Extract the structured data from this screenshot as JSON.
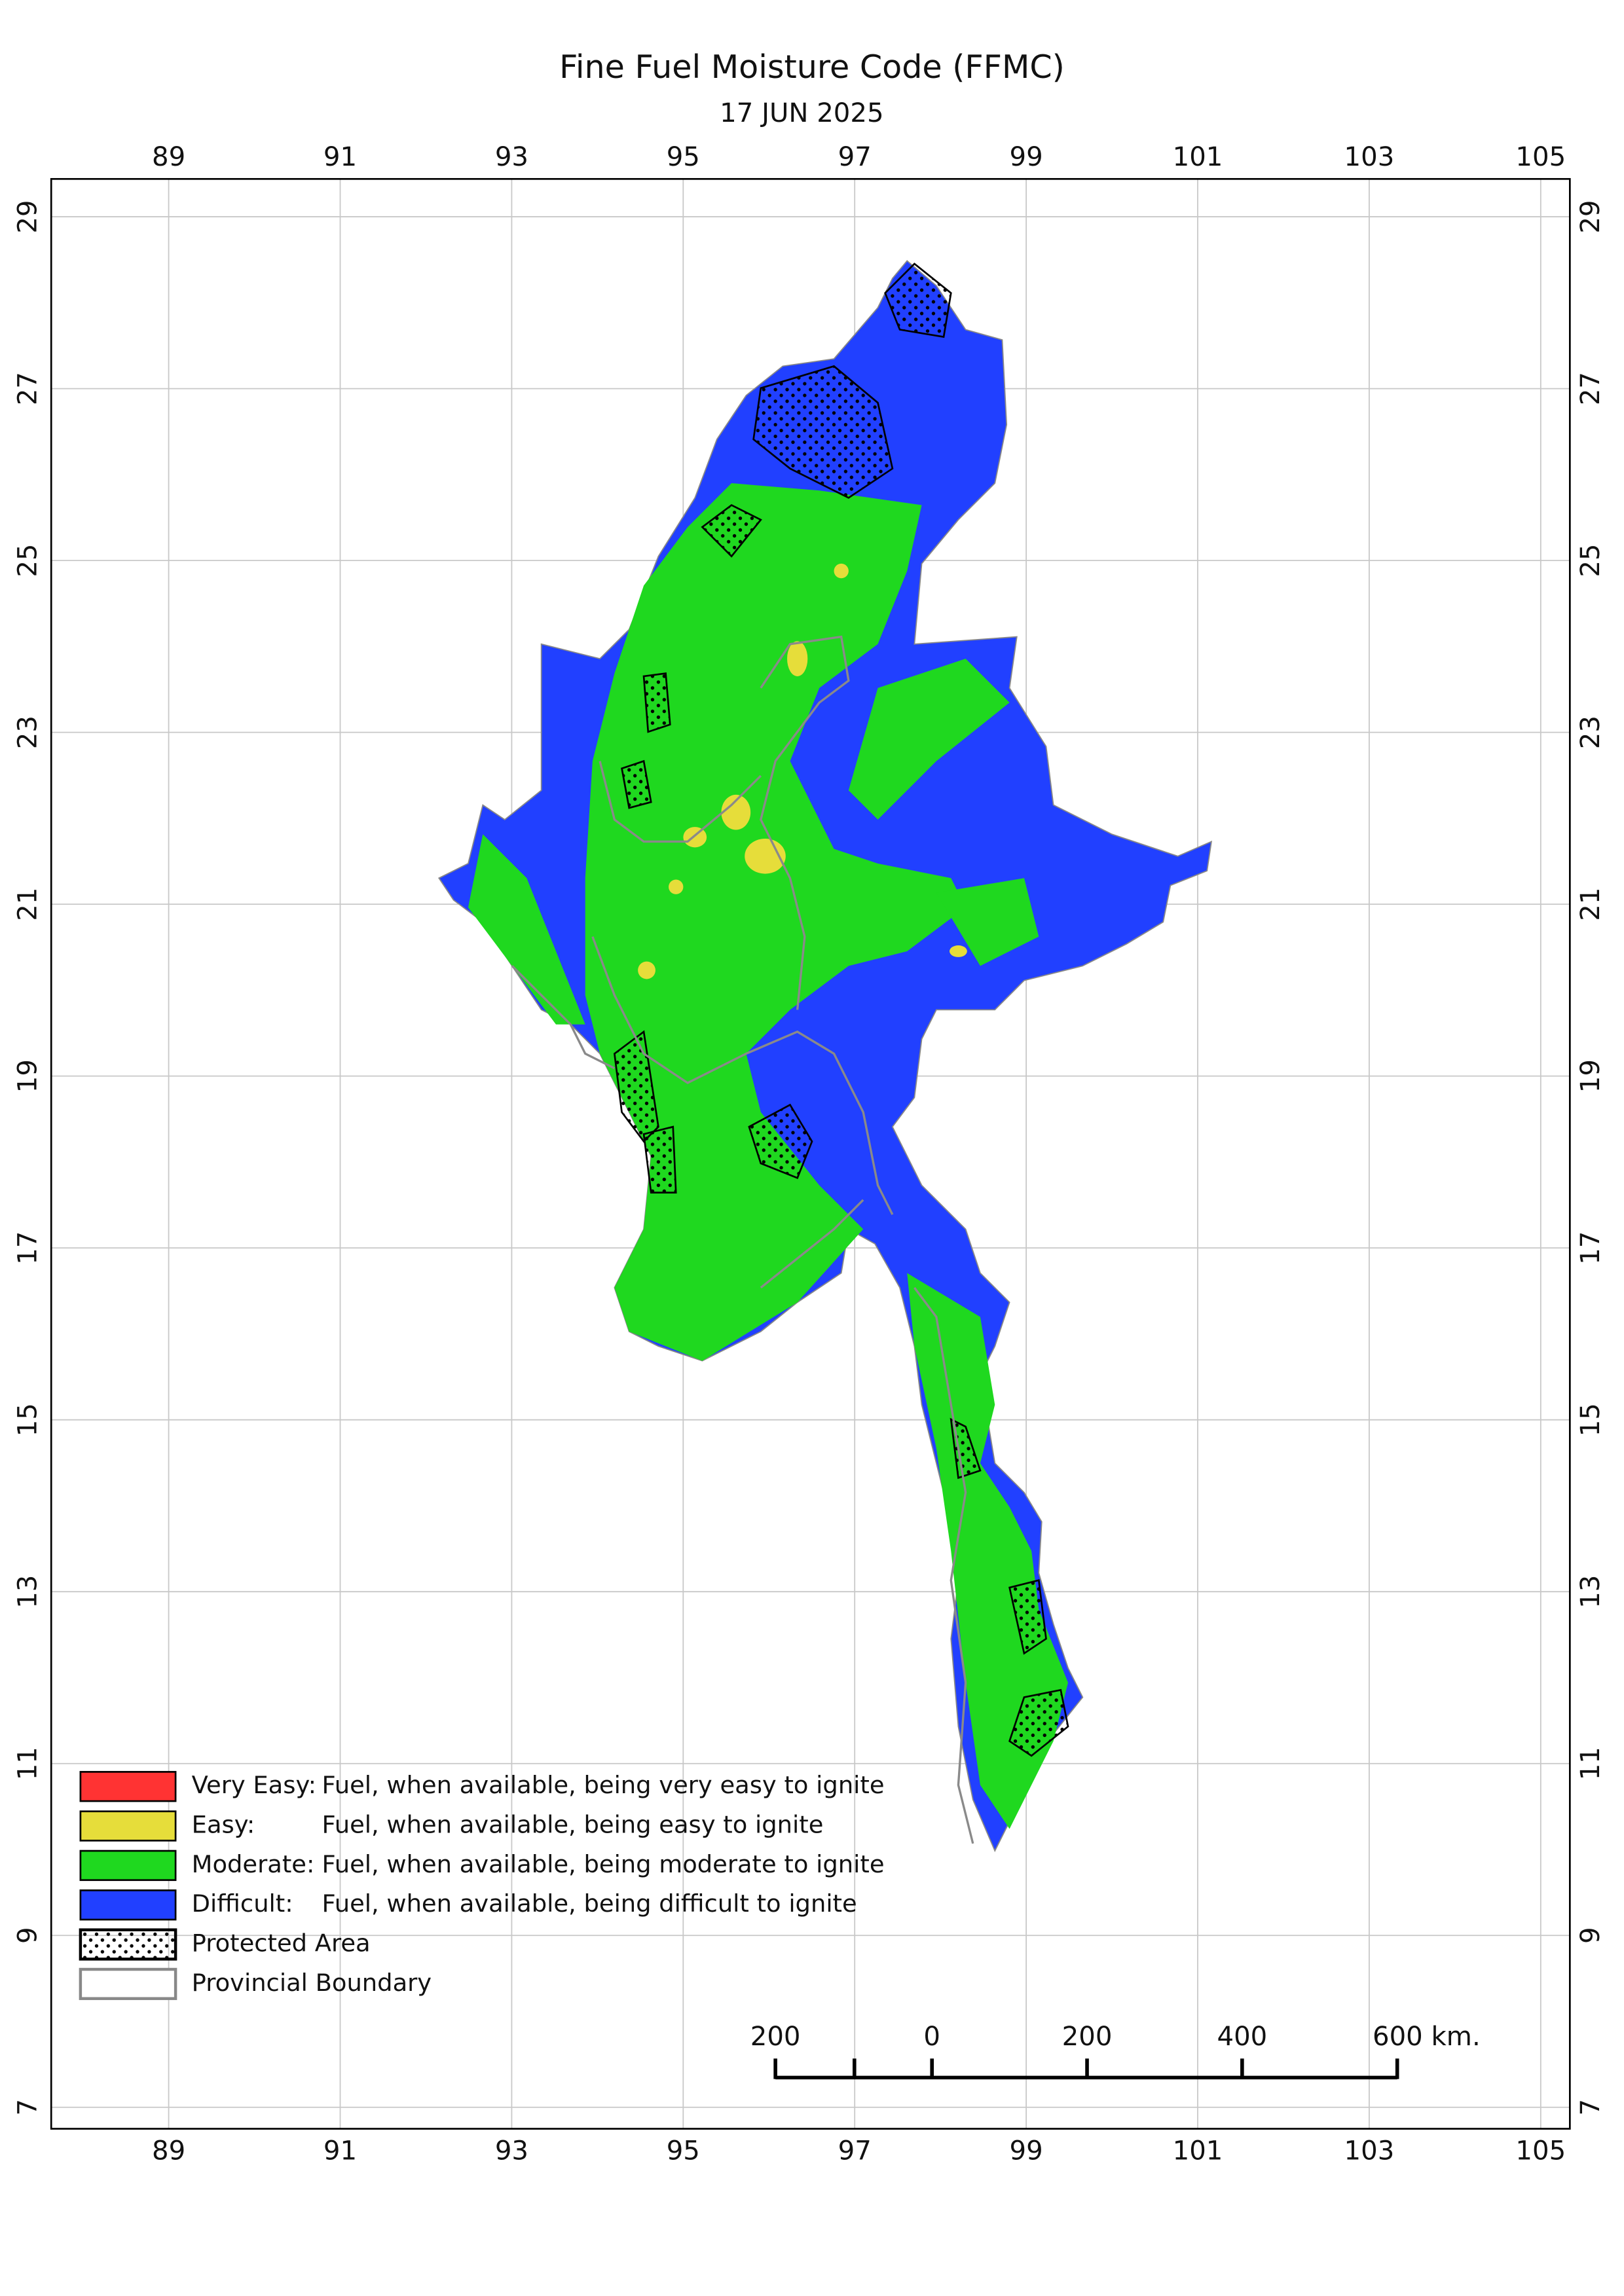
{
  "map": {
    "title": "Fine Fuel Moisture Code (FFMC)",
    "subtitle": "17 JUN 2025",
    "lon_range": [
      87.63,
      105.34
    ],
    "lat_range": [
      6.75,
      29.44
    ],
    "lon_ticks": [
      89,
      91,
      93,
      95,
      97,
      99,
      101,
      103,
      105
    ],
    "lat_ticks": [
      29,
      27,
      25,
      23,
      21,
      19,
      17,
      15,
      13,
      11,
      9,
      7
    ],
    "grid": true,
    "legend": [
      {
        "label": "Very Easy:",
        "description": "Fuel, when available, being very easy to ignite",
        "color": "#ff3333"
      },
      {
        "label": "Easy:",
        "description": "Fuel, when available, being easy to ignite",
        "color": "#e6dd3a"
      },
      {
        "label": "Moderate:",
        "description": "Fuel, when available, being moderate to ignite",
        "color": "#1fd81f"
      },
      {
        "label": "Difficult:",
        "description": "Fuel, when available, being difficult to ignite",
        "color": "#2140ff"
      },
      {
        "label": "Protected Area"
      },
      {
        "label": "Provincial Boundary"
      }
    ],
    "scale_bar": {
      "labels": [
        "200",
        "0",
        "200",
        "400",
        "600 km."
      ]
    }
  }
}
